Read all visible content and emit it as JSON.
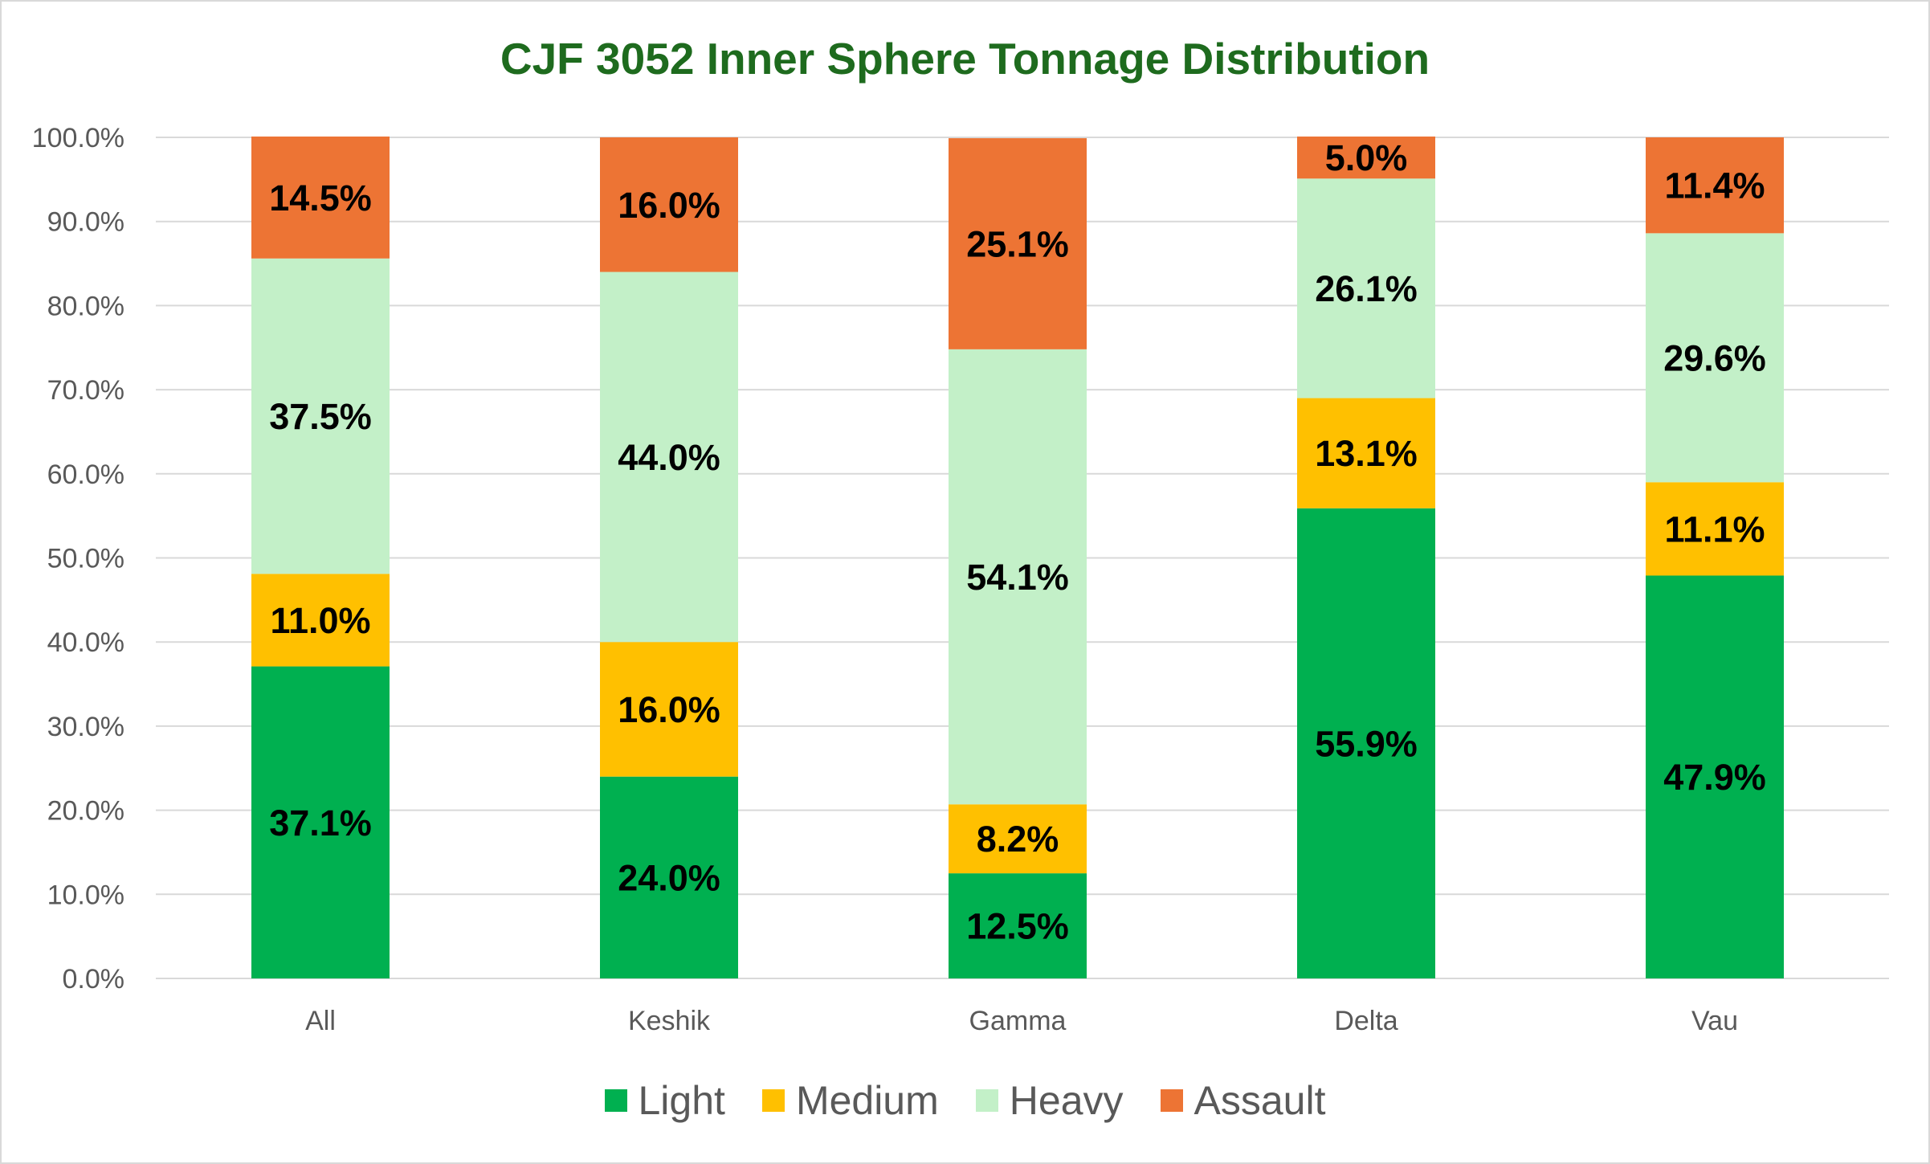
{
  "chart_data": {
    "type": "bar",
    "stacked": true,
    "percent": true,
    "title": "CJF 3052 Inner Sphere Tonnage Distribution",
    "title_color": "#1e6b1e",
    "categories": [
      "All",
      "Keshik",
      "Gamma",
      "Delta",
      "Vau"
    ],
    "series": [
      {
        "name": "Light",
        "color": "#00b050",
        "values": [
          37.1,
          24.0,
          12.5,
          55.9,
          47.9
        ],
        "labels": [
          "37.1%",
          "24.0%",
          "12.5%",
          "55.9%",
          "47.9%"
        ]
      },
      {
        "name": "Medium",
        "color": "#ffc000",
        "values": [
          11.0,
          16.0,
          8.2,
          13.1,
          11.1
        ],
        "labels": [
          "11.0%",
          "16.0%",
          "8.2%",
          "13.1%",
          "11.1%"
        ]
      },
      {
        "name": "Heavy",
        "color": "#c3f0c8",
        "values": [
          37.5,
          44.0,
          54.1,
          26.1,
          29.6
        ],
        "labels": [
          "37.5%",
          "44.0%",
          "54.1%",
          "26.1%",
          "29.6%"
        ]
      },
      {
        "name": "Assault",
        "color": "#ed7434",
        "values": [
          14.5,
          16.0,
          25.1,
          5.0,
          11.4
        ],
        "labels": [
          "14.5%",
          "16.0%",
          "25.1%",
          "5.0%",
          "11.4%"
        ]
      }
    ],
    "ylim": [
      0,
      100
    ],
    "yticks": [
      0,
      10,
      20,
      30,
      40,
      50,
      60,
      70,
      80,
      90,
      100
    ],
    "ytick_labels": [
      "0.0%",
      "10.0%",
      "20.0%",
      "30.0%",
      "40.0%",
      "50.0%",
      "60.0%",
      "70.0%",
      "80.0%",
      "90.0%",
      "100.0%"
    ],
    "xlabel": "",
    "ylabel": "",
    "grid": true,
    "legend_position": "bottom"
  }
}
